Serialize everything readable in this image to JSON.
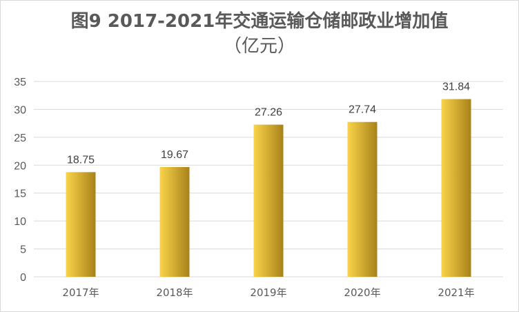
{
  "chart_data": {
    "type": "bar",
    "title": "图9 2017-2021年交通运输仓储邮政业增加值",
    "subtitle": "（亿元）",
    "categories": [
      "2017年",
      "2018年",
      "2019年",
      "2020年",
      "2021年"
    ],
    "values": [
      18.75,
      19.67,
      27.26,
      27.74,
      31.84
    ],
    "data_labels": [
      "18.75",
      "19.67",
      "27.26",
      "27.74",
      "31.84"
    ],
    "ylim": [
      0,
      35
    ],
    "yticks": [
      0,
      5,
      10,
      15,
      20,
      25,
      30,
      35
    ],
    "xlabel": "",
    "ylabel": "",
    "grid": true,
    "legend": "none",
    "colors": {
      "bar_light": "#FAD44A",
      "bar_dark": "#A8821A",
      "grid": "#d9d9d9",
      "text": "#595959"
    }
  }
}
